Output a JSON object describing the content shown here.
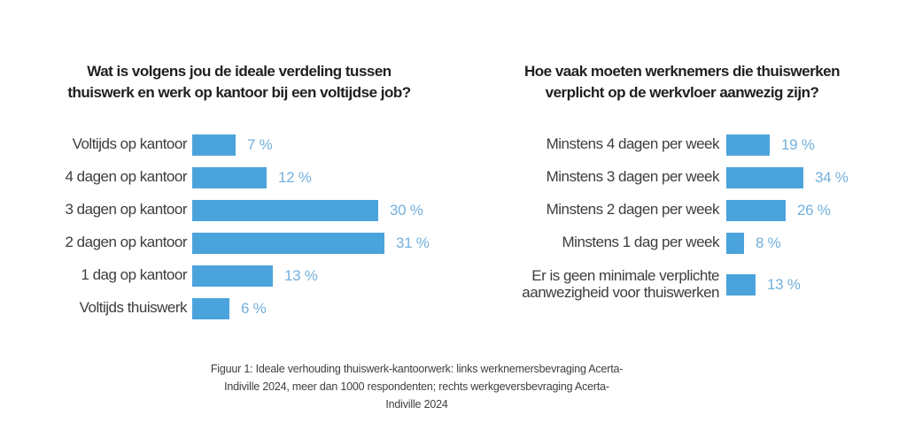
{
  "colors": {
    "bar_blue": "#4ba3dc",
    "value_label_blue": "#73b0dc",
    "title_text": "#1f1f1f",
    "category_text": "#3d3d3d",
    "caption_text": "#3f3f3f",
    "background": "#ffffff"
  },
  "chart_data": [
    {
      "type": "bar",
      "orientation": "horizontal",
      "title": "Wat is volgens jou de ideale verdeling tussen thuiswerk en werk op kantoor bij een voltijdse job?",
      "title_lines": [
        "Wat is volgens jou de ideale verdeling tussen",
        "thuiswerk en werk op kantoor bij een voltijdse job?"
      ],
      "categories": [
        "Voltijds op kantoor",
        "4 dagen op kantoor",
        "3 dagen op kantoor",
        "2 dagen op kantoor",
        "1 dag op kantoor",
        "Voltijds thuiswerk"
      ],
      "values": [
        7,
        12,
        30,
        31,
        13,
        6
      ],
      "value_suffix": " %",
      "xlim": [
        0,
        31
      ],
      "bar_color": "#4ba3dc",
      "grid": false,
      "legend": "none"
    },
    {
      "type": "bar",
      "orientation": "horizontal",
      "title": "Hoe vaak moeten werknemers die thuiswerken verplicht op de werkvloer aanwezig zijn?",
      "title_lines": [
        "Hoe vaak moeten werknemers die thuiswerken",
        "verplicht op de werkvloer aanwezig zijn?"
      ],
      "categories": [
        "Minstens 4 dagen per week",
        "Minstens 3 dagen per week",
        "Minstens 2 dagen per week",
        "Minstens 1 dag per week",
        "Er is geen minimale verplichte aanwezigheid voor thuiswerken"
      ],
      "values": [
        19,
        34,
        26,
        8,
        13
      ],
      "value_suffix": " %",
      "xlim": [
        0,
        34
      ],
      "bar_color": "#4ba3dc",
      "grid": false,
      "legend": "none"
    }
  ],
  "caption": {
    "lines": [
      "Figuur 1: Ideale verhouding thuiswerk-kantoorwerk: links werknemersbevraging Acerta-",
      "Indiville 2024, meer dan 1000 respondenten; rechts werkgeversbevraging Acerta-",
      "Indiville 2024"
    ]
  }
}
